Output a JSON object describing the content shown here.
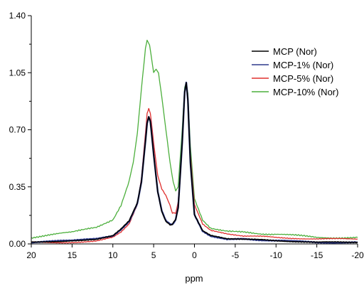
{
  "chart_data": {
    "type": "line",
    "title": "",
    "xlabel": "ppm",
    "ylabel": "",
    "xlim": [
      20,
      -20
    ],
    "ylim": [
      0.0,
      1.4
    ],
    "x_reversed": true,
    "x_ticks": [
      20,
      15,
      10,
      5,
      0,
      -5,
      -10,
      -15,
      -20
    ],
    "x_tick_labels": [
      "20",
      "15",
      "10",
      "5",
      "0",
      "-5",
      "-10",
      "-15",
      "-20"
    ],
    "y_ticks": [
      0.0,
      0.35,
      0.7,
      1.05,
      1.4
    ],
    "y_tick_labels": [
      "0.00",
      "0.35",
      "0.70",
      "1.05",
      "1.40"
    ],
    "grid": false,
    "legend_position": "top-right",
    "series": [
      {
        "name": "MCP (Nor)",
        "color": "#000000",
        "x": [
          20,
          15,
          12,
          10,
          9,
          8,
          7,
          6.5,
          6,
          5.8,
          5.6,
          5.4,
          5,
          4.5,
          4,
          3.5,
          3,
          2.7,
          2.3,
          2,
          1.5,
          1.2,
          1.0,
          0.8,
          0.5,
          0,
          -1,
          -2,
          -4,
          -6,
          -10,
          -15,
          -20
        ],
        "values": [
          0.01,
          0.02,
          0.03,
          0.05,
          0.09,
          0.14,
          0.25,
          0.38,
          0.63,
          0.74,
          0.78,
          0.75,
          0.55,
          0.32,
          0.2,
          0.14,
          0.12,
          0.12,
          0.15,
          0.22,
          0.62,
          0.93,
          0.99,
          0.88,
          0.5,
          0.18,
          0.08,
          0.05,
          0.03,
          0.03,
          0.02,
          0.01,
          0.01
        ]
      },
      {
        "name": "MCP-1% (Nor)",
        "color": "#2e3a8c",
        "x": [
          20,
          15,
          12,
          10,
          9,
          8,
          7,
          6.5,
          6,
          5.8,
          5.6,
          5.4,
          5,
          4.5,
          4,
          3.5,
          3,
          2.7,
          2.3,
          2,
          1.5,
          1.2,
          1.0,
          0.8,
          0.5,
          0,
          -1,
          -2,
          -4,
          -6,
          -10,
          -15,
          -20
        ],
        "values": [
          0.01,
          0.02,
          0.03,
          0.05,
          0.09,
          0.14,
          0.25,
          0.38,
          0.63,
          0.74,
          0.78,
          0.75,
          0.55,
          0.32,
          0.2,
          0.14,
          0.12,
          0.12,
          0.15,
          0.22,
          0.62,
          0.93,
          0.99,
          0.88,
          0.5,
          0.18,
          0.08,
          0.05,
          0.03,
          0.03,
          0.02,
          0.01,
          0.01
        ]
      },
      {
        "name": "MCP-5% (Nor)",
        "color": "#e0302f",
        "x": [
          20,
          15,
          12,
          10,
          9,
          8,
          7,
          6.5,
          6,
          5.8,
          5.6,
          5.4,
          5,
          4.5,
          4,
          3.5,
          3,
          2.7,
          2.3,
          2,
          1.5,
          1.2,
          1.0,
          0.8,
          0.5,
          0,
          -1,
          -2,
          -4,
          -6,
          -10,
          -15,
          -20
        ],
        "values": [
          0.01,
          0.01,
          0.02,
          0.04,
          0.07,
          0.12,
          0.24,
          0.4,
          0.68,
          0.8,
          0.83,
          0.8,
          0.62,
          0.42,
          0.34,
          0.3,
          0.24,
          0.19,
          0.19,
          0.26,
          0.63,
          0.92,
          0.99,
          0.9,
          0.55,
          0.24,
          0.12,
          0.08,
          0.06,
          0.05,
          0.04,
          0.03,
          0.03
        ]
      },
      {
        "name": "MCP-10% (Nor)",
        "color": "#4caf3c",
        "x": [
          20,
          15,
          12,
          10,
          9,
          8,
          7.5,
          7,
          6.5,
          6.2,
          6,
          5.8,
          5.5,
          5,
          4.7,
          4.4,
          4,
          3.5,
          3,
          2.6,
          2.3,
          2,
          1.5,
          1.2,
          1.0,
          0.8,
          0.5,
          0,
          -1,
          -2,
          -4,
          -6,
          -10,
          -15,
          -20
        ],
        "values": [
          0.04,
          0.07,
          0.1,
          0.15,
          0.24,
          0.39,
          0.5,
          0.68,
          0.95,
          1.1,
          1.2,
          1.25,
          1.22,
          1.05,
          1.07,
          1.05,
          0.9,
          0.7,
          0.5,
          0.38,
          0.32,
          0.35,
          0.7,
          0.96,
          0.99,
          0.92,
          0.6,
          0.28,
          0.15,
          0.1,
          0.08,
          0.07,
          0.06,
          0.04,
          0.04
        ]
      }
    ]
  }
}
